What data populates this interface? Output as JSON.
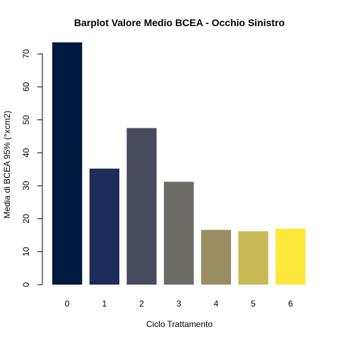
{
  "chart_data": {
    "type": "bar",
    "title": "Barplot Valore Medio BCEA - Occhio Sinistro",
    "xlabel": "Ciclo Trattamento",
    "ylabel": "Media di BCEA 95% (°xcm2)",
    "categories": [
      "0",
      "1",
      "2",
      "3",
      "4",
      "5",
      "6"
    ],
    "values": [
      73.5,
      35.2,
      47.5,
      31.2,
      16.6,
      16.2,
      17.0
    ],
    "colors": [
      "#00193f",
      "#1d2c58",
      "#474b5d",
      "#6c6b66",
      "#998f62",
      "#cab957",
      "#fde83b"
    ],
    "yticks": [
      "0",
      "10",
      "20",
      "30",
      "40",
      "50",
      "60",
      "70"
    ],
    "ylim": [
      0,
      73.5
    ],
    "grid": false,
    "legend": "none"
  }
}
